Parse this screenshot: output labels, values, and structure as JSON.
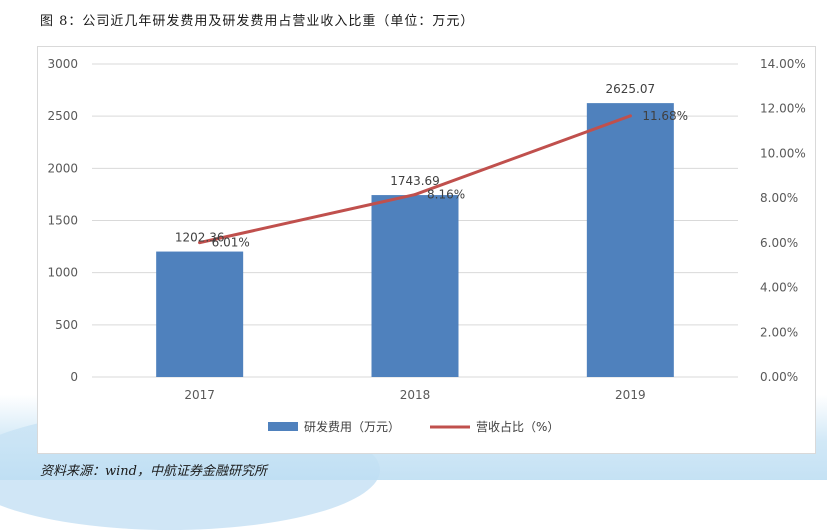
{
  "figure": {
    "title": "图 8：公司近几年研发费用及研发费用占营业收入比重（单位：万元）",
    "source": "资料来源：wind，中航证券金融研究所"
  },
  "colors": {
    "bar": "#4f81bd",
    "line": "#c0504d",
    "grid": "#d9d9d9",
    "axis_text": "#595959"
  },
  "chart_data": {
    "type": "bar",
    "categories": [
      "2017",
      "2018",
      "2019"
    ],
    "series": [
      {
        "name": "研发费用（万元）",
        "type": "bar",
        "axis": "left",
        "values": [
          1202.36,
          1743.69,
          2625.07
        ],
        "labels": [
          "1202.36",
          "1743.69",
          "2625.07"
        ]
      },
      {
        "name": "营收占比（%）",
        "type": "line",
        "axis": "right",
        "values": [
          6.01,
          8.16,
          11.68
        ],
        "labels": [
          "6.01%",
          "8.16%",
          "11.68%"
        ]
      }
    ],
    "left_axis": {
      "ylim": [
        0,
        3000
      ],
      "ticks": [
        0,
        500,
        1000,
        1500,
        2000,
        2500,
        3000
      ],
      "tick_labels": [
        "0",
        "500",
        "1000",
        "1500",
        "2000",
        "2500",
        "3000"
      ]
    },
    "right_axis": {
      "ylim": [
        0,
        14
      ],
      "ticks": [
        0,
        2,
        4,
        6,
        8,
        10,
        12,
        14
      ],
      "tick_labels": [
        "0.00%",
        "2.00%",
        "4.00%",
        "6.00%",
        "8.00%",
        "10.00%",
        "12.00%",
        "14.00%"
      ]
    },
    "grid": true,
    "legend_position": "bottom"
  }
}
